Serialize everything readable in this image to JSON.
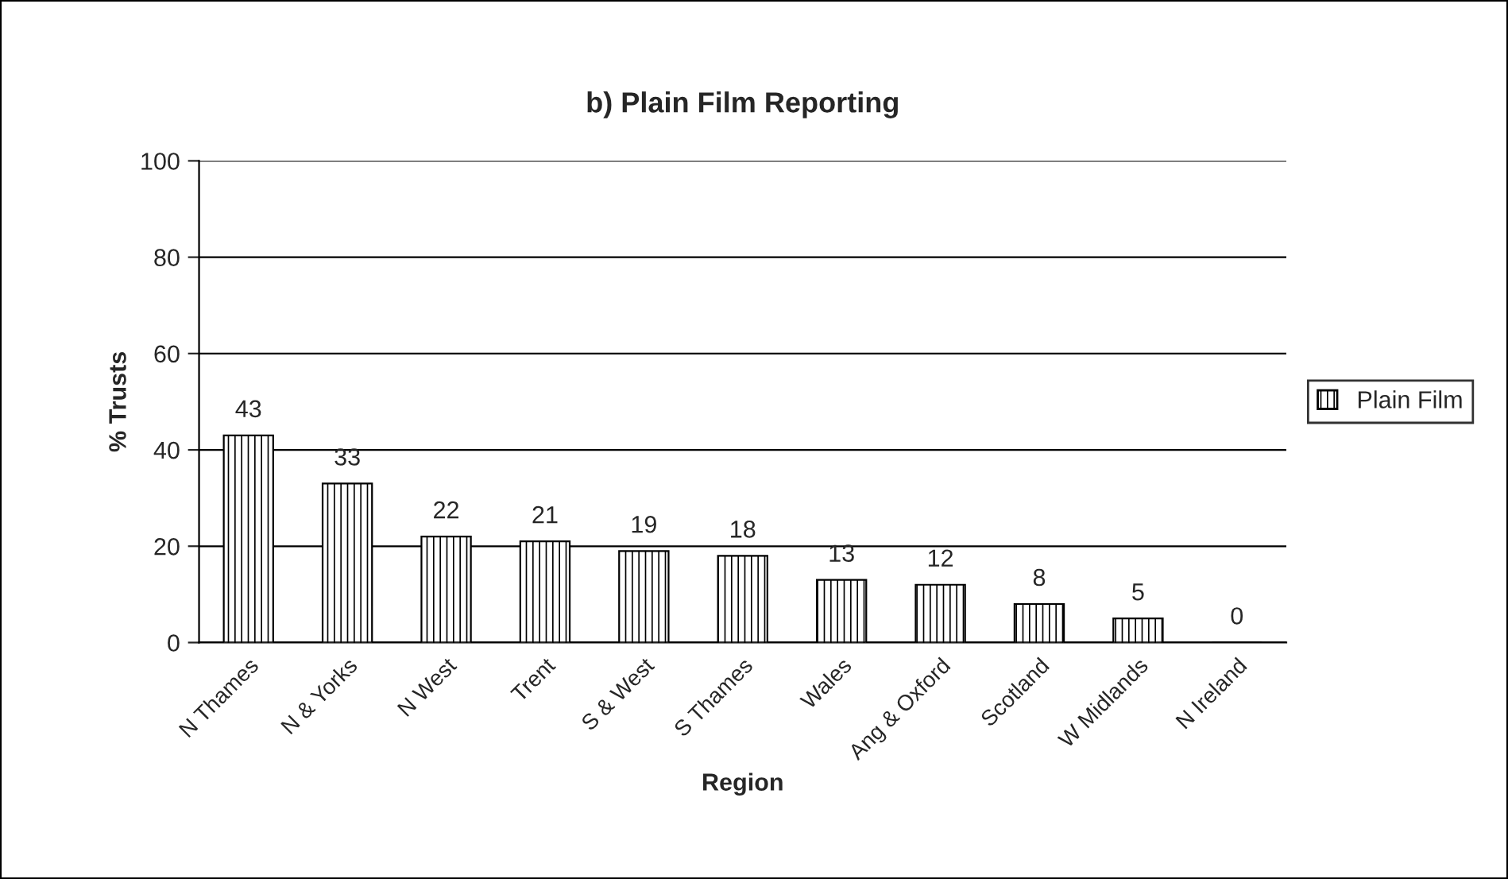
{
  "chart_data": {
    "type": "bar",
    "title": "b) Plain Film Reporting",
    "xlabel": "Region",
    "ylabel": "% Trusts",
    "categories": [
      "N Thames",
      "N & Yorks",
      "N West",
      "Trent",
      "S & West",
      "S Thames",
      "Wales",
      "Ang & Oxford",
      "Scotland",
      "W Midlands",
      "N Ireland"
    ],
    "series": [
      {
        "name": "Plain Film",
        "color": "#000000",
        "values": [
          43,
          33,
          22,
          21,
          19,
          18,
          13,
          12,
          8,
          5,
          0
        ]
      }
    ],
    "ylim": [
      0,
      100
    ],
    "yticks": [
      0,
      20,
      40,
      60,
      80,
      100
    ],
    "grid": "y",
    "legend": "right",
    "data_labels": true
  }
}
